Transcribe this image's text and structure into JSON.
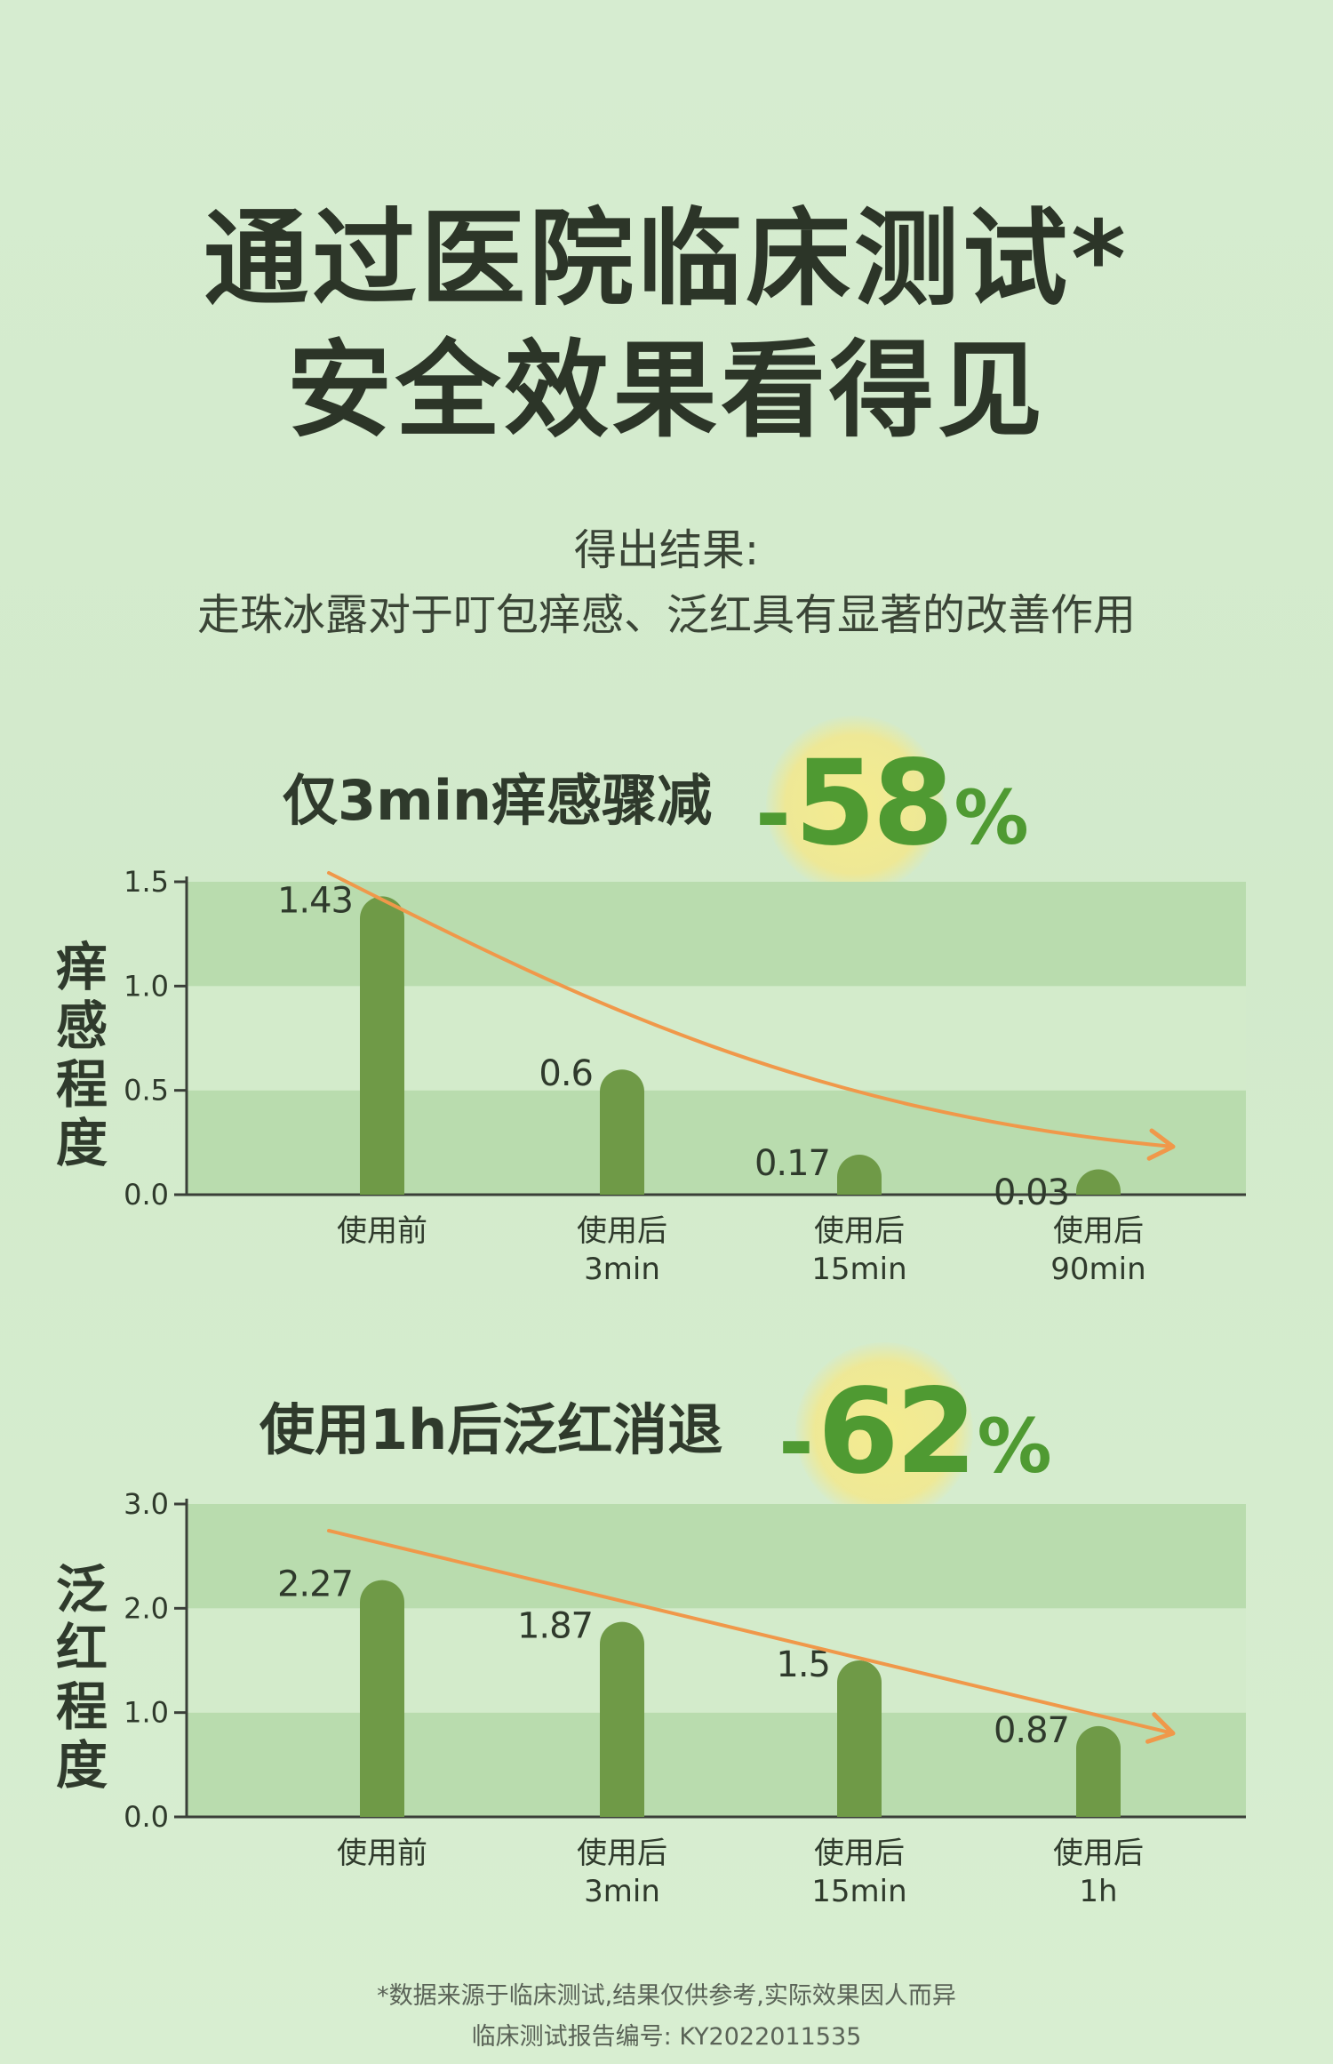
{
  "header": {
    "title_line1": "通过医院临床测试*",
    "title_line2": "安全效果看得见",
    "result_label": "得出结果:",
    "result_text": "走珠冰露对于叮包痒感、泛红具有显著的改善作用"
  },
  "section1": {
    "headline": "仅3min痒感骤减",
    "percent_sign": "-",
    "percent_value": "58",
    "percent_unit": "%",
    "y_label": "痒感程度"
  },
  "section2": {
    "headline": "使用1h后泛红消退",
    "percent_sign": "-",
    "percent_value": "62",
    "percent_unit": "%",
    "y_label": "泛红程度"
  },
  "footer": {
    "disclaimer": "*数据来源于临床测试,结果仅供参考,实际效果因人而异",
    "report_no": "临床测试报告编号: KY2022011535"
  },
  "colors": {
    "bar": "#6f9a47",
    "band_dark": "#b9dcae",
    "band_light": "#d3ebcb",
    "arrow": "#f0984a",
    "axis": "#3a3f38",
    "accent": "#4f9a32"
  },
  "chart_data": [
    {
      "type": "bar",
      "y_axis_title": "痒感程度",
      "categories": [
        [
          "使用前"
        ],
        [
          "使用后",
          "3min"
        ],
        [
          "使用后",
          "15min"
        ],
        [
          "使用后",
          "90min"
        ]
      ],
      "values": [
        1.43,
        0.6,
        0.17,
        0.03
      ],
      "value_labels": [
        "1.43",
        "0.6",
        "0.17",
        "0.03"
      ],
      "ylim": [
        0,
        1.5
      ],
      "yticks": [
        0.0,
        0.5,
        1.0,
        1.5
      ],
      "ytick_labels": [
        "0.0",
        "0.5",
        "1.0",
        "1.5"
      ],
      "trend": "curved-decreasing-arrow",
      "grid": "alternating bands"
    },
    {
      "type": "bar",
      "y_axis_title": "泛红程度",
      "categories": [
        [
          "使用前"
        ],
        [
          "使用后",
          "3min"
        ],
        [
          "使用后",
          "15min"
        ],
        [
          "使用后",
          "1h"
        ]
      ],
      "values": [
        2.27,
        1.87,
        1.5,
        0.87
      ],
      "value_labels": [
        "2.27",
        "1.87",
        "1.5",
        "0.87"
      ],
      "ylim": [
        0,
        3.0
      ],
      "yticks": [
        0.0,
        1.0,
        2.0,
        3.0
      ],
      "ytick_labels": [
        "0.0",
        "1.0",
        "2.0",
        "3.0"
      ],
      "trend": "straight-decreasing-arrow",
      "grid": "alternating bands"
    }
  ]
}
